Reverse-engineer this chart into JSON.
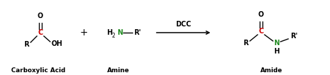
{
  "bg_color": "#ffffff",
  "carbon_color": "#cc0000",
  "nitrogen_color": "#228B22",
  "black": "#000000",
  "label_carboxylic": "Carboxylic Acid",
  "label_amine": "Amine",
  "label_amide": "Amide",
  "label_dcc": "DCC",
  "fig_w": 4.74,
  "fig_h": 1.08,
  "dpi": 100
}
